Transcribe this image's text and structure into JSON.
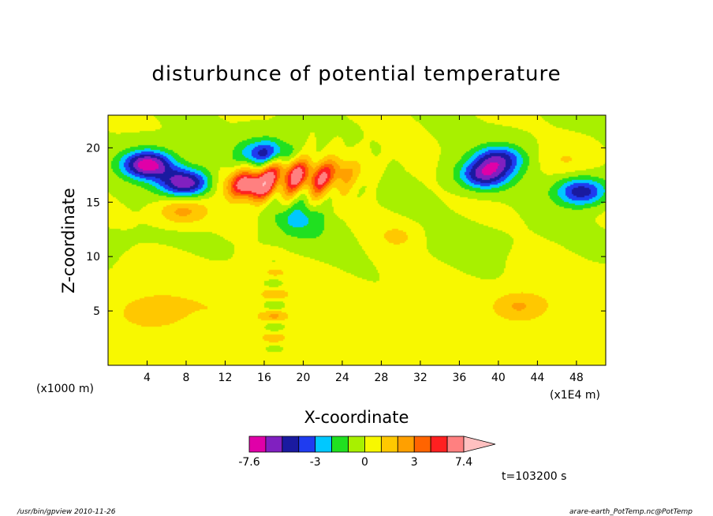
{
  "chart_data": {
    "type": "heatmap",
    "title": "disturbunce of potential temperature",
    "xlabel": "X-coordinate",
    "ylabel": "Z-coordinate",
    "x_unit_left": "(x1000 m)",
    "x_unit_right": "(x1E4 m)",
    "xlim": [
      0,
      51
    ],
    "ylim": [
      0,
      23
    ],
    "x_ticks": [
      4,
      8,
      12,
      16,
      20,
      24,
      28,
      32,
      36,
      40,
      44,
      48
    ],
    "y_ticks": [
      5,
      10,
      15,
      20
    ],
    "colorbar": {
      "levels": [
        -7.6,
        -6,
        -5,
        -4,
        -3,
        -2,
        -1,
        0,
        1,
        2,
        3,
        4,
        5,
        7.4
      ],
      "tick_labels": [
        "-7.6",
        "-3",
        "0",
        "3",
        "7.4"
      ],
      "tick_values": [
        -7.6,
        -3,
        0,
        3,
        7.4
      ],
      "colors": [
        "#e000a8",
        "#8020c0",
        "#1a1aa0",
        "#1f3cf0",
        "#00c8ff",
        "#20e020",
        "#a8f000",
        "#f8f800",
        "#ffc800",
        "#ffa000",
        "#ff6400",
        "#ff2020",
        "#ff8080",
        "#ffc0c0"
      ]
    },
    "features": [
      {
        "x": 4.0,
        "z": 18.5,
        "value": -6.8
      },
      {
        "x": 7.8,
        "z": 16.8,
        "value": -6.0
      },
      {
        "x": 7.5,
        "z": 14.2,
        "value": 2.5
      },
      {
        "x": 4.2,
        "z": 5.0,
        "value": 1.2
      },
      {
        "x": 14.8,
        "z": 16.6,
        "value": 7.0
      },
      {
        "x": 18.0,
        "z": 18.0,
        "value": 3.5
      },
      {
        "x": 21.0,
        "z": 17.0,
        "value": 3.2
      },
      {
        "x": 23.5,
        "z": 18.0,
        "value": 2.2
      },
      {
        "x": 16.0,
        "z": 19.5,
        "value": -4.5
      },
      {
        "x": 19.5,
        "z": 13.5,
        "value": -2.0
      },
      {
        "x": 38.5,
        "z": 17.5,
        "value": -5.0
      },
      {
        "x": 40.0,
        "z": 19.0,
        "value": -4.5
      },
      {
        "x": 48.5,
        "z": 16.0,
        "value": -4.8
      },
      {
        "x": 42.0,
        "z": 5.5,
        "value": 1.8
      },
      {
        "x": 30.0,
        "z": 12.0,
        "value": 1.0
      },
      {
        "x": 47.0,
        "z": 19.0,
        "value": 1.0
      }
    ]
  },
  "annotation": {
    "time": "t=103200 s",
    "footer_left": "/usr/bin/gpview   2010-11-26",
    "footer_right": "arare-earth_PotTemp.nc@PotTemp"
  }
}
